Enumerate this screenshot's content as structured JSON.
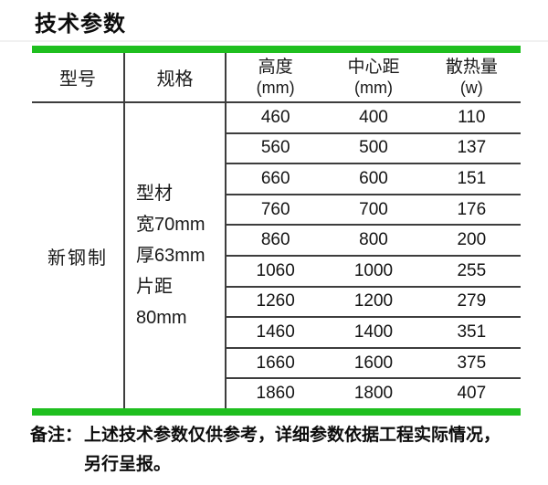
{
  "title": "技术参数",
  "colors": {
    "accent_green": "#1fbf1f",
    "line": "#3d3d3d",
    "text": "#1a1a1a"
  },
  "table": {
    "headers": {
      "model": "型号",
      "spec": "规格",
      "height_label": "高度",
      "height_unit": "(mm)",
      "center_label": "中心距",
      "center_unit": "(mm)",
      "heat_label": "散热量",
      "heat_unit": "(w)"
    },
    "model_value": "新钢制",
    "spec_lines": [
      "型材",
      "宽70mm",
      "厚63mm",
      "片距",
      "80mm"
    ],
    "rows": [
      [
        "460",
        "400",
        "110"
      ],
      [
        "560",
        "500",
        "137"
      ],
      [
        "660",
        "600",
        "151"
      ],
      [
        "760",
        "700",
        "176"
      ],
      [
        "860",
        "800",
        "200"
      ],
      [
        "1060",
        "1000",
        "255"
      ],
      [
        "1260",
        "1200",
        "279"
      ],
      [
        "1460",
        "1400",
        "351"
      ],
      [
        "1660",
        "1600",
        "375"
      ],
      [
        "1860",
        "1800",
        "407"
      ]
    ]
  },
  "note": {
    "label": "备注：",
    "line1": "上述技术参数仅供参考，详细参数依据工程实际情况，",
    "line2": "另行呈报。"
  }
}
